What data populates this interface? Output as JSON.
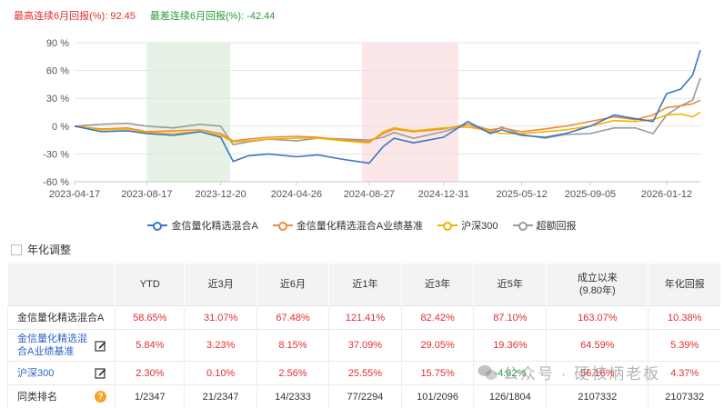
{
  "stats": {
    "best_label": "最高连续6月回报(%): ",
    "best_value": "92.45",
    "worst_label": "最差连续6月回报(%): ",
    "worst_value": "-42.44",
    "best_color": "#e03030",
    "worst_color": "#2a9a3a"
  },
  "chart_data": {
    "type": "line",
    "x_ticks": [
      "2023-04-17",
      "2023-08-17",
      "2023-12-20",
      "2024-04-26",
      "2024-08-27",
      "2024-12-31",
      "2025-05-12",
      "2025-09-05",
      "2026-01-12"
    ],
    "y_ticks": [
      "90 %",
      "60 %",
      "30 %",
      "0 %",
      "-30 %",
      "-60 %"
    ],
    "ylim": [
      -60,
      90
    ],
    "grid": true,
    "legend_position": "bottom",
    "shaded_regions": [
      {
        "start": "2023-08-17",
        "end": "2024-01-05",
        "color": "#e6f2e6"
      },
      {
        "start": "2024-08-15",
        "end": "2025-01-25",
        "color": "#fbe6e8"
      }
    ],
    "x": [
      "2023-04-17",
      "2023-06-01",
      "2023-07-15",
      "2023-08-17",
      "2023-10-01",
      "2023-11-15",
      "2023-12-20",
      "2024-01-10",
      "2024-02-05",
      "2024-03-10",
      "2024-04-26",
      "2024-06-01",
      "2024-07-15",
      "2024-08-27",
      "2024-09-20",
      "2024-10-08",
      "2024-11-10",
      "2024-12-31",
      "2025-02-10",
      "2025-03-20",
      "2025-04-08",
      "2025-05-12",
      "2025-06-20",
      "2025-07-25",
      "2025-09-05",
      "2025-10-15",
      "2025-11-20",
      "2025-12-20",
      "2026-01-12",
      "2026-02-05",
      "2026-02-25",
      "2026-03-10"
    ],
    "series": [
      {
        "name": "金信量化精选混合A",
        "color": "#3a76c4",
        "values": [
          0,
          -6,
          -5,
          -8,
          -10,
          -6,
          -12,
          -38,
          -32,
          -30,
          -33,
          -31,
          -36,
          -40,
          -22,
          -13,
          -18,
          -12,
          5,
          -8,
          -4,
          -10,
          -12,
          -8,
          0,
          12,
          8,
          5,
          35,
          40,
          55,
          82
        ]
      },
      {
        "name": "金信量化精选混合A业绩基准",
        "color": "#f08a3c",
        "values": [
          0,
          -3,
          -2,
          -6,
          -5,
          -4,
          -8,
          -16,
          -14,
          -12,
          -11,
          -12,
          -15,
          -17,
          -8,
          -3,
          -6,
          -3,
          2,
          -4,
          -2,
          -6,
          -3,
          0,
          5,
          10,
          7,
          12,
          20,
          22,
          24,
          28
        ]
      },
      {
        "name": "沪深300",
        "color": "#f2b200",
        "values": [
          0,
          -4,
          -3,
          -7,
          -8,
          -6,
          -10,
          -17,
          -16,
          -14,
          -13,
          -13,
          -16,
          -18,
          -6,
          -2,
          -5,
          -2,
          -1,
          -5,
          -8,
          -8,
          -6,
          -4,
          0,
          6,
          5,
          7,
          12,
          13,
          10,
          15
        ]
      },
      {
        "name": "超额回报",
        "color": "#9b9b9b",
        "values": [
          0,
          2,
          3,
          0,
          -2,
          2,
          0,
          -20,
          -17,
          -14,
          -16,
          -13,
          -14,
          -15,
          -12,
          -7,
          -13,
          -6,
          2,
          -7,
          -1,
          -9,
          -13,
          -9,
          -8,
          -2,
          -2,
          -8,
          12,
          22,
          28,
          52
        ]
      }
    ]
  },
  "legend": [
    "金信量化精选混合A",
    "金信量化精选混合A业绩基准",
    "沪深300",
    "超额回报"
  ],
  "annualize_label": "年化调整",
  "table": {
    "headers": [
      "",
      "YTD",
      "近3月",
      "近6月",
      "近1年",
      "近3年",
      "近5年",
      "成立以来\n(9.80年)",
      "年化回报"
    ],
    "rows": [
      {
        "name": "金信量化精选混合A",
        "link": false,
        "icon": "",
        "values": [
          "58.65%",
          "31.07%",
          "67.48%",
          "121.41%",
          "82.42%",
          "87.10%",
          "163.07%",
          "10.38%"
        ]
      },
      {
        "name": "金信量化精选混\n合A业绩基准",
        "link": true,
        "icon": "edit-icon",
        "values": [
          "5.84%",
          "3.23%",
          "8.15%",
          "37.09%",
          "29.05%",
          "19.36%",
          "64.59%",
          "5.39%"
        ]
      },
      {
        "name": "沪深300",
        "link": true,
        "icon": "edit-icon",
        "values": [
          "2.30%",
          "0.10%",
          "2.56%",
          "25.55%",
          "15.75%",
          "-4.62%",
          "56.16%",
          "4.37%"
        ]
      },
      {
        "name": "同类排名",
        "link": false,
        "icon": "question-icon",
        "values": [
          "1/2347",
          "21/2347",
          "14/2333",
          "77/2294",
          "101/2096",
          "126/1804",
          "2107332",
          "2107332"
        ]
      }
    ]
  },
  "watermark": "公众号 · 硬核炳老板"
}
